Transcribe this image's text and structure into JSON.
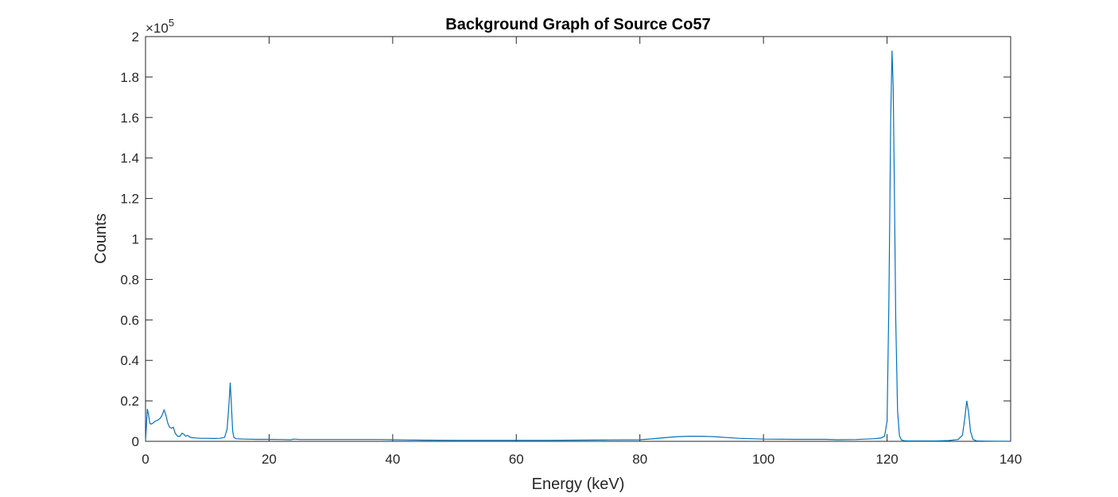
{
  "chart_data": {
    "type": "line",
    "title": "Background Graph of Source Co57",
    "xlabel": "Energy (keV)",
    "ylabel": "Counts",
    "xlim": [
      0,
      140
    ],
    "ylim": [
      0,
      200000
    ],
    "y_exponent_label": "×10",
    "y_exponent_power": "5",
    "x_ticks": [
      0,
      20,
      40,
      60,
      80,
      100,
      120,
      140
    ],
    "x_tick_labels": [
      "0",
      "20",
      "40",
      "60",
      "80",
      "100",
      "120",
      "140"
    ],
    "y_ticks": [
      0,
      20000,
      40000,
      60000,
      80000,
      100000,
      120000,
      140000,
      160000,
      180000,
      200000
    ],
    "y_tick_labels": [
      "0",
      "0.2",
      "0.4",
      "0.6",
      "0.8",
      "1",
      "1.2",
      "1.4",
      "1.6",
      "1.8",
      "2"
    ],
    "grid": false,
    "line_color": "#0072BD",
    "series": [
      {
        "x": [
          0,
          0.3,
          0.5,
          0.7,
          0.9,
          1.2,
          1.6,
          2.0,
          2.4,
          2.7,
          3.0,
          3.3,
          3.6,
          3.9,
          4.2,
          4.5,
          4.8,
          5.2,
          5.6,
          5.9,
          6.2,
          6.5,
          6.8,
          7.2,
          7.6,
          8.0,
          9.0,
          10.0,
          11.0,
          12.0,
          12.8,
          13.2,
          13.5,
          13.7,
          13.9,
          14.1,
          14.3,
          14.6,
          15.0,
          16.0,
          18.0,
          20.0,
          22.0,
          23.5,
          24.0,
          25.0,
          30.0,
          35.0,
          38.0,
          40.0,
          45.0,
          50.0,
          55.0,
          60.0,
          65.0,
          70.0,
          75.0,
          80.0,
          82.0,
          84.0,
          86.0,
          88.0,
          90.0,
          92.0,
          94.0,
          96.0,
          98.0,
          100.0,
          105.0,
          110.0,
          112.0,
          115.0,
          118.0,
          119.0,
          119.6,
          120.0,
          120.3,
          120.6,
          120.8,
          121.0,
          121.2,
          121.4,
          121.7,
          122.0,
          122.3,
          122.7,
          123.5,
          125.0,
          128.0,
          130.0,
          131.5,
          132.2,
          132.6,
          132.9,
          133.2,
          133.5,
          133.9,
          134.5,
          136.0,
          138.0,
          139.0,
          140.0
        ],
        "y": [
          0,
          16000,
          13000,
          9000,
          8500,
          9000,
          10000,
          10500,
          11500,
          13000,
          15500,
          13000,
          9000,
          7000,
          6500,
          7000,
          4000,
          2500,
          2500,
          4000,
          3500,
          2500,
          3000,
          2000,
          1800,
          1700,
          1500,
          1500,
          1400,
          1500,
          2000,
          6000,
          18000,
          29000,
          18000,
          5000,
          2000,
          1300,
          1200,
          1100,
          1000,
          1000,
          900,
          800,
          1100,
          900,
          900,
          900,
          900,
          800,
          600,
          500,
          500,
          500,
          500,
          600,
          700,
          800,
          1200,
          1800,
          2300,
          2500,
          2500,
          2300,
          1900,
          1500,
          1300,
          1100,
          1000,
          1000,
          800,
          900,
          1300,
          1600,
          2500,
          10000,
          70000,
          160000,
          193000,
          175000,
          120000,
          60000,
          15000,
          3000,
          800,
          300,
          200,
          200,
          200,
          400,
          900,
          3000,
          12000,
          20000,
          14000,
          5000,
          1000,
          200,
          100,
          50,
          50,
          0
        ]
      }
    ]
  }
}
